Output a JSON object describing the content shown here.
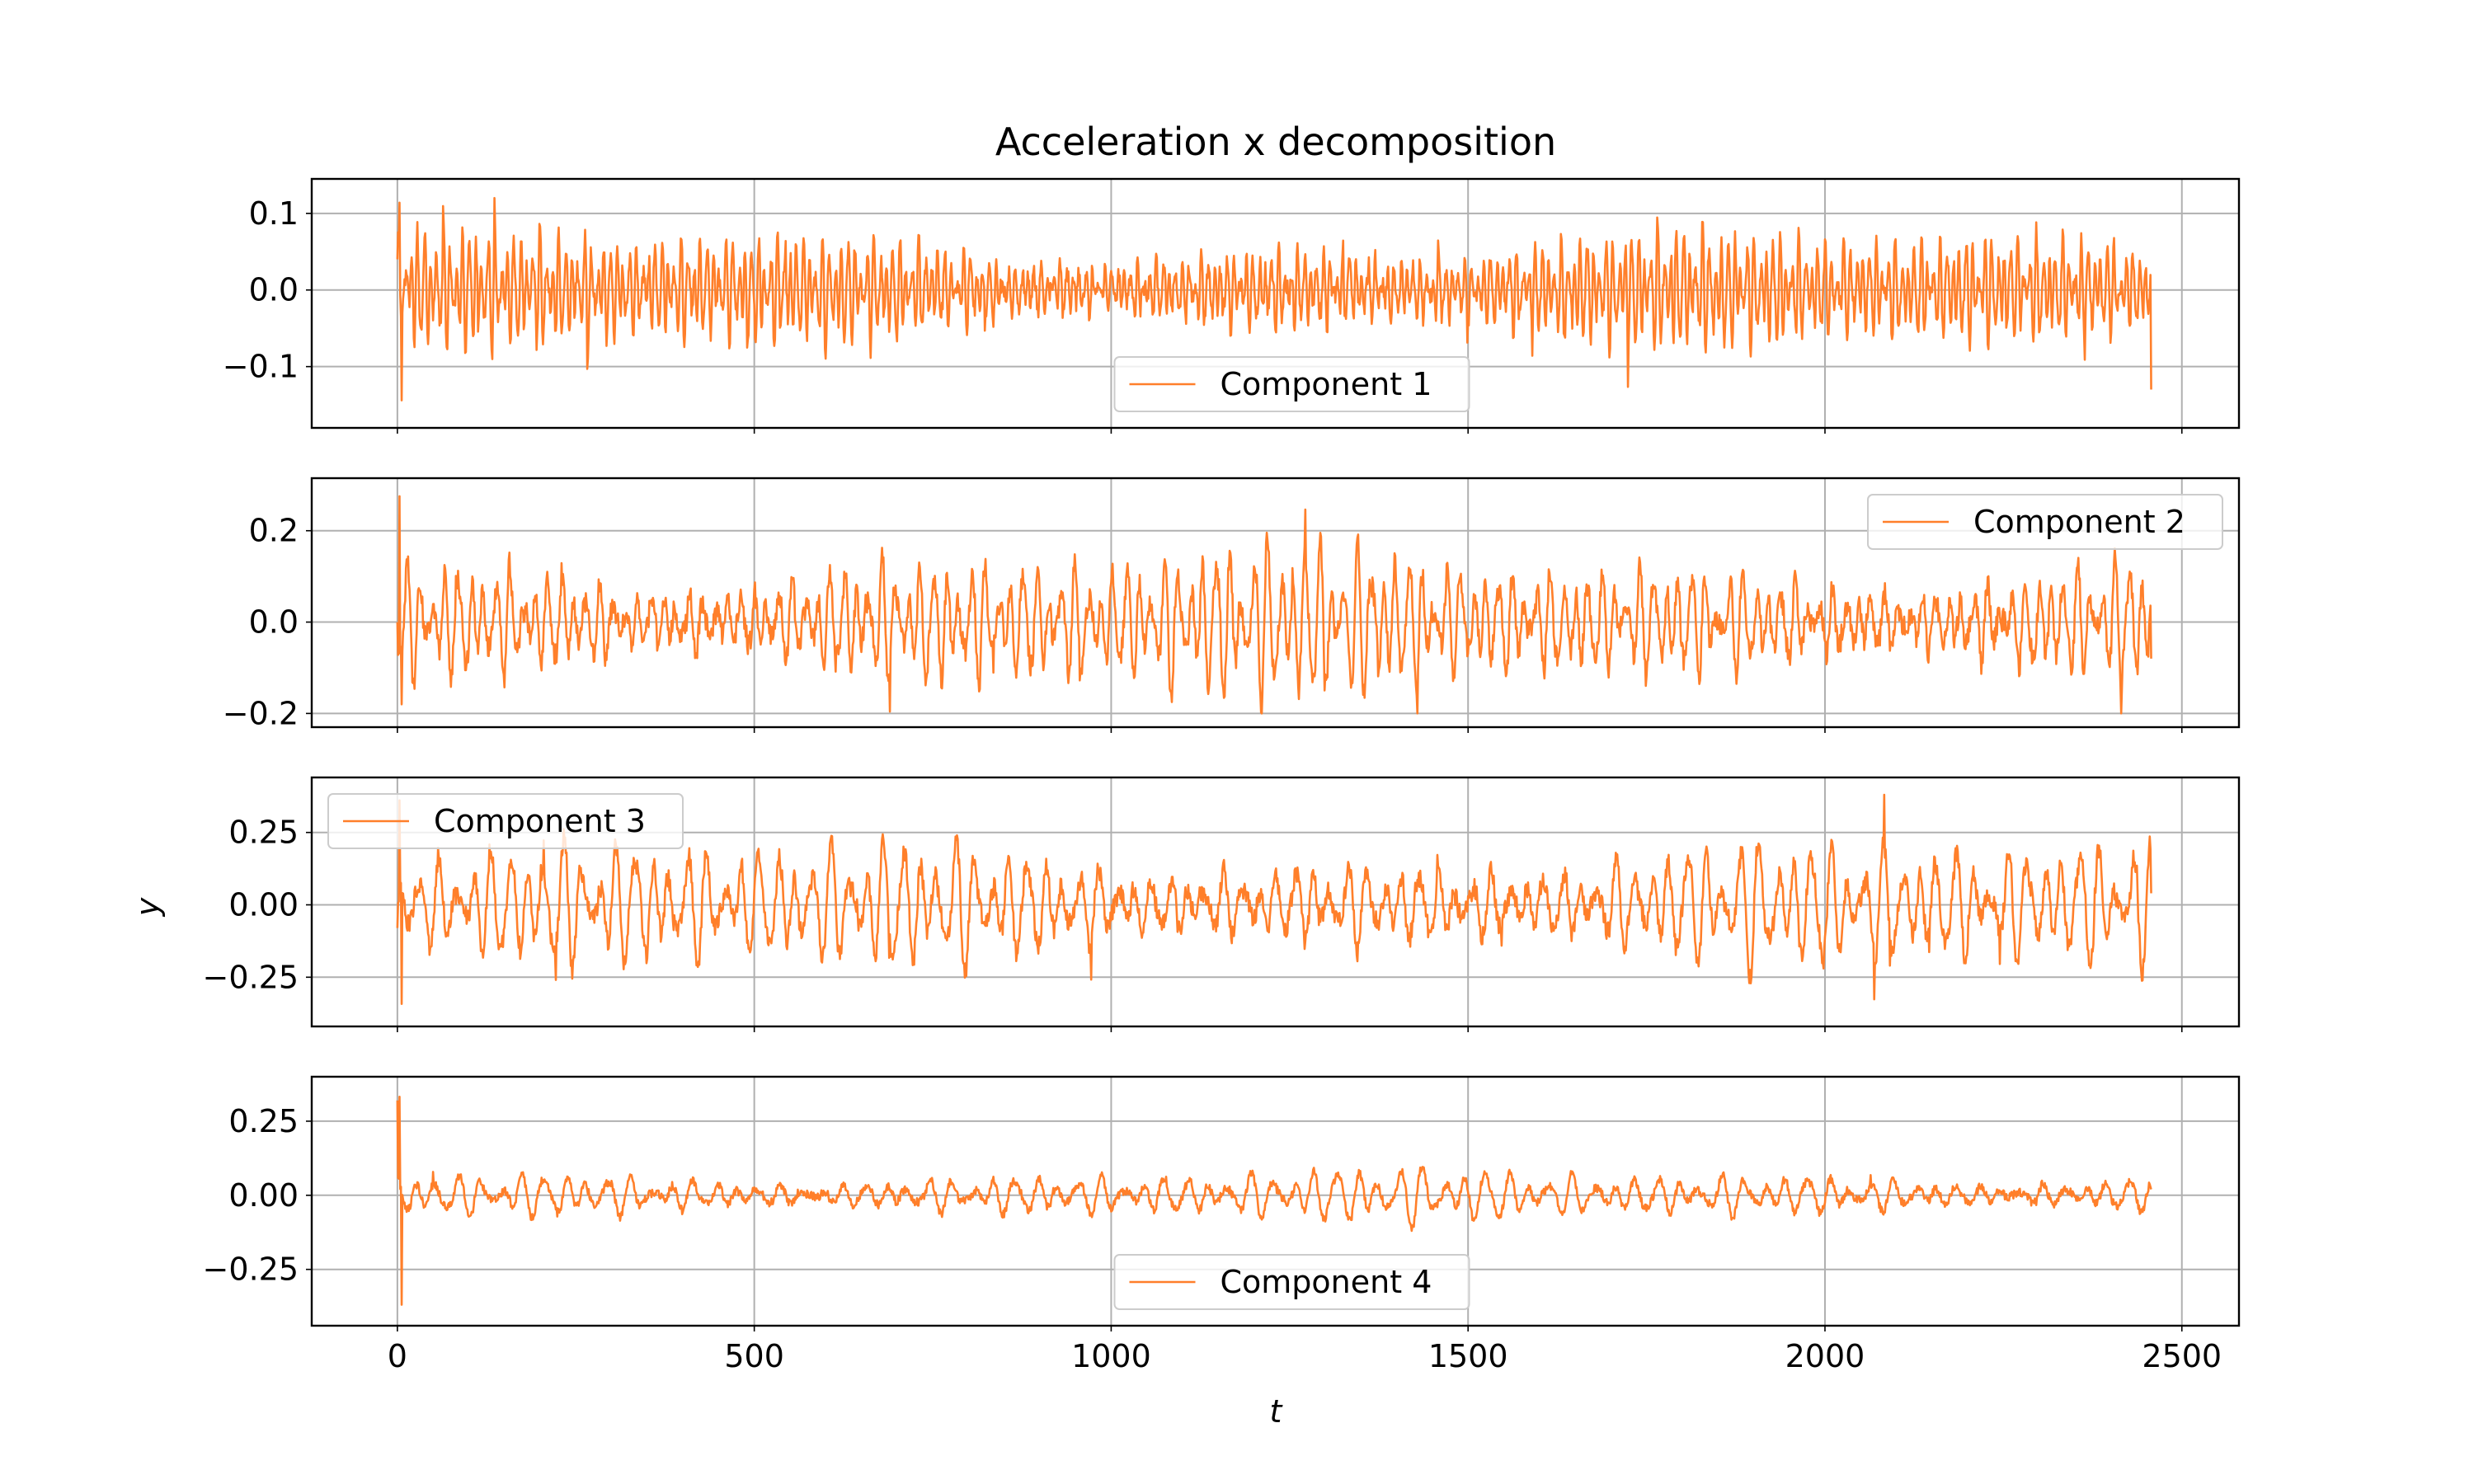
{
  "chart_data": {
    "type": "line",
    "title": "Acceleration x decomposition",
    "xlabel": "t",
    "ylabel": "y",
    "xlim": [
      -120,
      2580
    ],
    "xticks": [
      0,
      500,
      1000,
      1500,
      2000,
      2500
    ],
    "xtick_labels": [
      "0",
      "500",
      "1000",
      "1500",
      "2000",
      "2500"
    ],
    "grid": true,
    "line_color": "#ff7f2a",
    "n_points": 2458,
    "subplots": [
      {
        "name": "Component 1",
        "ylim": [
          -0.18,
          0.145
        ],
        "yticks": [
          0.1,
          0.0,
          -0.1
        ],
        "ytick_labels": [
          "0.1",
          "0.0",
          "−0.1"
        ],
        "legend": "lower-center",
        "signal": {
          "start": 0.04,
          "end": -0.13,
          "amp": 0.07,
          "period": 9,
          "peaks": 0.12,
          "troughs": -0.16
        }
      },
      {
        "name": "Component 2",
        "ylim": [
          -0.23,
          0.315
        ],
        "yticks": [
          0.2,
          0.0,
          -0.2
        ],
        "ytick_labels": [
          "0.2",
          "0.0",
          "−0.2"
        ],
        "legend": "upper-right",
        "signal": {
          "start": 0.0,
          "end": -0.08,
          "amp": 0.15,
          "period": 18,
          "peaks": 0.29,
          "troughs": -0.2
        }
      },
      {
        "name": "Component 3",
        "ylim": [
          -0.42,
          0.44
        ],
        "yticks": [
          0.25,
          0.0,
          -0.25
        ],
        "ytick_labels": [
          "0.25",
          "0.00",
          "−0.25"
        ],
        "legend": "upper-left",
        "signal": {
          "start": -0.08,
          "end": 0.04,
          "amp": 0.2,
          "period": 25,
          "peaks": 0.38,
          "troughs": -0.38
        }
      },
      {
        "name": "Component 4",
        "ylim": [
          -0.44,
          0.4
        ],
        "yticks": [
          0.25,
          0.0,
          -0.25
        ],
        "ytick_labels": [
          "0.25",
          "0.00",
          "−0.25"
        ],
        "legend": "lower-center",
        "signal": {
          "start": 0.32,
          "end": 0.02,
          "amp": 0.08,
          "period": 30,
          "peaks": 0.35,
          "troughs": -0.41
        }
      }
    ]
  }
}
